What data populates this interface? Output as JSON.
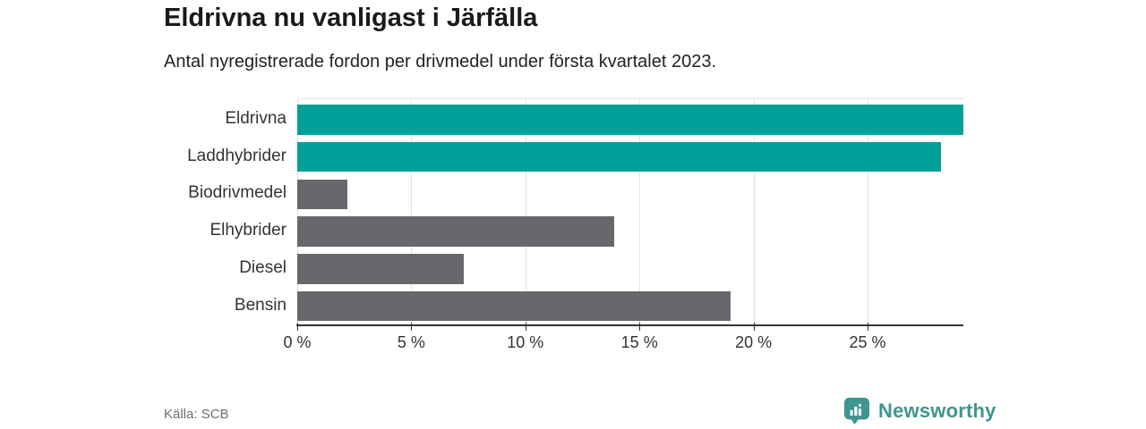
{
  "header": {
    "title": "Eldrivna nu vanligast i Järfälla",
    "subtitle": "Antal nyregistrerade fordon per drivmedel under första kvartalet 2023."
  },
  "chart_data": {
    "type": "bar",
    "orientation": "horizontal",
    "title": "Eldrivna nu vanligast i Järfälla",
    "subtitle": "Antal nyregistrerade fordon per drivmedel under första kvartalet 2023.",
    "categories": [
      "Eldrivna",
      "Laddhybrider",
      "Biodrivmedel",
      "Elhybrider",
      "Diesel",
      "Bensin"
    ],
    "values": [
      29.2,
      28.2,
      2.2,
      13.9,
      7.3,
      19.0
    ],
    "unit": "%",
    "bar_colors": [
      "#00a099",
      "#00a099",
      "#6a676c",
      "#6a676c",
      "#6a676c",
      "#6a676c"
    ],
    "highlight_color": "#00a099",
    "default_color": "#6a676c",
    "xlim": [
      0,
      29.2
    ],
    "ticks": [
      0,
      5,
      10,
      15,
      20,
      25
    ],
    "tick_labels": [
      "0 %",
      "5 %",
      "10 %",
      "15 %",
      "20 %",
      "25 %"
    ],
    "grid": true,
    "legend": false,
    "xlabel": "",
    "ylabel": ""
  },
  "footer": {
    "source": "Källa: SCB",
    "brand": "Newsworthy",
    "brand_color": "#3f958f"
  }
}
